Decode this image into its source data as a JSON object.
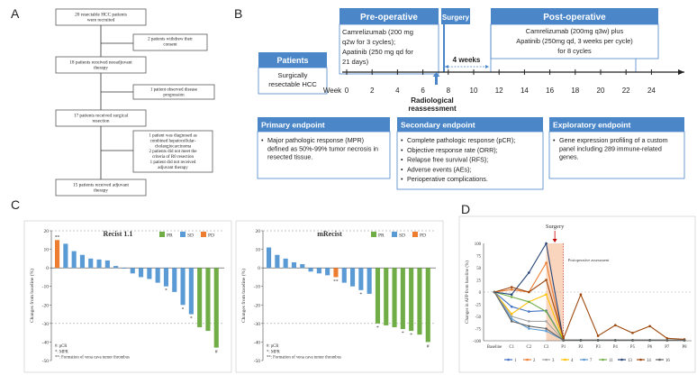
{
  "panels": {
    "a": "A",
    "b": "B",
    "c": "C",
    "d": "D"
  },
  "flow": {
    "boxes": [
      "20 resectable HCC patients\nwere recruited",
      "18 patients received neoadjuvant\ntherapy",
      "17 patients received surgical\nresection",
      "15 patients received adjuvant\ntherapy"
    ],
    "side": [
      "2 patients withdrew their\nconsent",
      "1 patient observed disease\nprogression",
      "1 patient was diagnosed as\ncombined hepatocellular-\ncholangiocarcinoma\n2 patients did not meet the\ncriteria of R0 resection\n1 patient did not received\nadjuvant therapy"
    ]
  },
  "timeline": {
    "phases": {
      "pre": "Pre-operative",
      "surgery": "Surgery",
      "post": "Post-operative"
    },
    "patients_label": "Patients",
    "patients_desc": "Surgically\nresectable HCC",
    "pre_regimen": "Camrelizumab (200 mg\nq2w for 3 cycles);\nApatinib (250 mg qd for\n21 days)",
    "post_regimen": "Camrelizumab (200mg q3w) plus\nApatinib (250mg qd, 3 weeks per cycle)\nfor 8 cycles",
    "gap_label": "4 weeks",
    "week_label": "Week",
    "ticks": [
      "0",
      "2",
      "4",
      "6",
      "8",
      "10",
      "12",
      "14",
      "16",
      "18",
      "20",
      "22",
      "24"
    ],
    "reassess": "Radiological\nreassessment",
    "endpoints": [
      {
        "title": "Primary endpoint",
        "items": [
          "Major pathologic response (MPR)\ndefined as 50%-99% tumor necrosis in\nresected tissue."
        ]
      },
      {
        "title": "Secondary endpoint",
        "items": [
          "Complete pathologic response (pCR);",
          "Objective response rate (ORR);",
          "Relapse free survival (RFS);",
          "Adverse events (AEs);",
          "Perioperative complications."
        ]
      },
      {
        "title": "Exploratory endpoint",
        "items": [
          "Gene expression profiling of a custom\npanel including 289 immune-related\ngenes."
        ]
      }
    ]
  },
  "colors": {
    "pr": "#70ad47",
    "sd": "#5b9bd5",
    "pd": "#ed7d31",
    "blue": "#4a86c8",
    "line": "#2f5597"
  },
  "chart_data": [
    {
      "type": "bar",
      "title": "Recist 1.1",
      "ylabel": "Changes from baseline (%)",
      "ylim": [
        -50,
        20
      ],
      "yticks": [
        "20",
        "10",
        "0",
        "-10",
        "-20",
        "-30",
        "-40",
        "-50"
      ],
      "legend": [
        "PR",
        "SD",
        "PD"
      ],
      "values": [
        15,
        13,
        9,
        7,
        5,
        4.5,
        4,
        1,
        0,
        -3,
        -5,
        -6,
        -8,
        -10,
        -13,
        -20,
        -25,
        -32,
        -34,
        -43
      ],
      "status": [
        "PD",
        "SD",
        "SD",
        "SD",
        "SD",
        "SD",
        "SD",
        "SD",
        "SD",
        "SD",
        "SD",
        "SD",
        "SD",
        "SD",
        "SD",
        "SD",
        "SD",
        "PR",
        "PR",
        "PR"
      ],
      "marks": {
        "0": "**",
        "13": "*",
        "15": "*",
        "16": "*",
        "19": "#"
      },
      "notes": [
        "#: pCR",
        "*: MPR",
        "**: Formation of vena cava tumor thrombus"
      ]
    },
    {
      "type": "bar",
      "title": "mRecist",
      "ylabel": "Changes from baseline (%)",
      "ylim": [
        -50,
        20
      ],
      "yticks": [
        "20",
        "10",
        "0",
        "-10",
        "-20",
        "-30",
        "-40",
        "-50"
      ],
      "legend": [
        "PR",
        "SD",
        "PD"
      ],
      "values": [
        11,
        7,
        5,
        3,
        2,
        -2,
        -3,
        -4,
        -5,
        -8,
        -10,
        -12,
        -14,
        -30,
        -31,
        -32,
        -33,
        -34,
        -36,
        -40
      ],
      "status": [
        "SD",
        "SD",
        "SD",
        "SD",
        "SD",
        "SD",
        "SD",
        "SD",
        "PD",
        "SD",
        "SD",
        "SD",
        "SD",
        "PR",
        "PR",
        "PR",
        "PR",
        "PR",
        "PR",
        "PR"
      ],
      "marks": {
        "8": "**",
        "11": "*",
        "13": "*",
        "16": "*",
        "17": "*",
        "19": "#"
      },
      "notes": [
        "#: pCR",
        "*: MPR",
        "**: Formation of vena cava tumor thrombus"
      ]
    },
    {
      "type": "line",
      "ylabel": "Changes in AFP from baseline (%)",
      "x": [
        "Baseline",
        "C1",
        "C2",
        "C3",
        "P1",
        "P2",
        "P3",
        "P4",
        "P5",
        "P6",
        "P7",
        "P8"
      ],
      "ylim": [
        -100,
        100
      ],
      "yticks": [
        "100",
        "75",
        "50",
        "25",
        "0",
        "-25",
        "-50",
        "-75",
        "-100"
      ],
      "surgery_label": "Surgery",
      "postop_label": "Postoperative assessment",
      "series": [
        {
          "name": "1",
          "color": "#4472c4",
          "values": [
            0,
            -30,
            -40,
            -38,
            -99,
            -99,
            -99,
            -99,
            -99,
            -99,
            -99,
            -99
          ]
        },
        {
          "name": "2",
          "color": "#ed7d31",
          "values": [
            0,
            5,
            0,
            60,
            -99,
            -99,
            -99,
            -99,
            -99,
            -99,
            -99,
            -99
          ]
        },
        {
          "name": "3",
          "color": "#a5a5a5",
          "values": [
            0,
            -50,
            -60,
            -60,
            -99,
            -99,
            -99,
            -99,
            -99,
            -99,
            -99,
            -99
          ]
        },
        {
          "name": "4",
          "color": "#ffc000",
          "values": [
            0,
            -45,
            -20,
            -5,
            -99,
            -99,
            -99,
            -99,
            -99,
            -99,
            -99,
            -99
          ]
        },
        {
          "name": "7",
          "color": "#5b9bd5",
          "values": [
            0,
            -55,
            -75,
            -80,
            -99,
            -99,
            -99,
            -99,
            -99,
            -99,
            -99,
            -99
          ]
        },
        {
          "name": "11",
          "color": "#70ad47",
          "values": [
            0,
            -10,
            -20,
            -40,
            -99,
            -99,
            -99,
            -99,
            -99,
            -99,
            -99,
            -99
          ]
        },
        {
          "name": "13",
          "color": "#264478",
          "values": [
            0,
            -5,
            40,
            100,
            -99,
            -99,
            -99,
            -99,
            -99,
            -99,
            -99,
            -99
          ]
        },
        {
          "name": "14",
          "color": "#9e480e",
          "values": [
            0,
            10,
            0,
            25,
            -95,
            -5,
            -90,
            -68,
            -84,
            -70,
            -95,
            -97
          ]
        },
        {
          "name": "16",
          "color": "#636363",
          "values": [
            0,
            -60,
            -70,
            -75,
            -99,
            -99,
            -99,
            -99,
            -99,
            -99,
            -99,
            -99
          ]
        }
      ]
    }
  ]
}
